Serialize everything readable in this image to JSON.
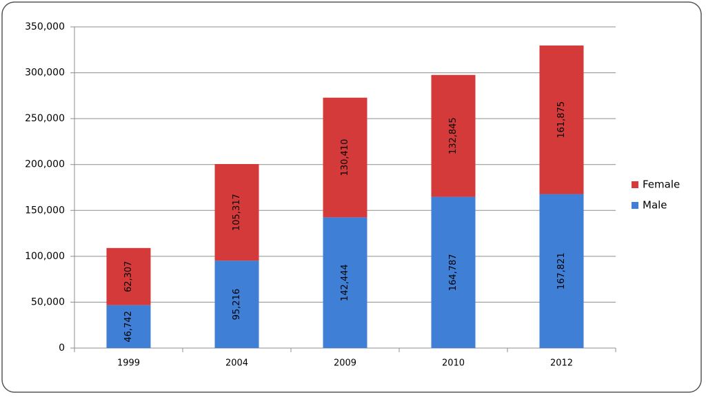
{
  "chart_data": {
    "type": "stacked-bar",
    "categories": [
      "1999",
      "2004",
      "2009",
      "2010",
      "2012"
    ],
    "series": [
      {
        "name": "Male",
        "color": "#3f7fd6",
        "values": [
          46742,
          95216,
          142444,
          164787,
          167821
        ],
        "value_labels": [
          "46,742",
          "95,216",
          "142,444",
          "164,787",
          "167,821"
        ]
      },
      {
        "name": "Female",
        "color": "#d43a3a",
        "values": [
          62307,
          105317,
          130410,
          132845,
          161875
        ],
        "value_labels": [
          "62,307",
          "105,317",
          "130,410",
          "132,845",
          "161,875"
        ]
      }
    ],
    "ylim": [
      0,
      350000
    ],
    "yticks": [
      0,
      {
        "value": 50000,
        "label": "50,000"
      },
      {
        "value": 100000,
        "label": "100,000"
      },
      {
        "value": 150000,
        "label": "150,000"
      },
      {
        "value": 200000,
        "label": "200,000"
      },
      {
        "value": 250000,
        "label": "250,000"
      },
      {
        "value": 300000,
        "label": "300,000"
      },
      {
        "value": 350000,
        "label": "350,000"
      }
    ],
    "grid": true,
    "legend": "right"
  }
}
